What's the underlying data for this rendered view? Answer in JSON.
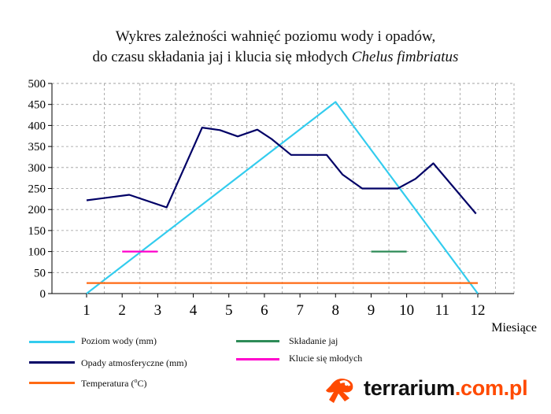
{
  "title": {
    "line1": "Wykres zależności wahnięć poziomu wody i opadów,",
    "line2_prefix": "do czasu składania jaj i klucia się młodych",
    "line2_species": "Chelus fimbriatus"
  },
  "chart_data": {
    "type": "line",
    "xlabel": "Miesiące",
    "ylabel": "",
    "xlim": [
      1,
      12
    ],
    "ylim": [
      0,
      500
    ],
    "x_ticks": [
      1,
      2,
      3,
      4,
      5,
      6,
      7,
      8,
      9,
      10,
      11,
      12
    ],
    "y_ticks": [
      0,
      50,
      100,
      150,
      200,
      250,
      300,
      350,
      400,
      450,
      500
    ],
    "grid": true,
    "series": [
      {
        "name": "Poziom wody (mm)",
        "color": "#33ccee",
        "points": [
          [
            1,
            0
          ],
          [
            8,
            456
          ],
          [
            12,
            0
          ]
        ]
      },
      {
        "name": "Opady atmosferyczne (mm)",
        "color": "#000066",
        "points": [
          [
            1,
            222
          ],
          [
            2.2,
            235
          ],
          [
            3.25,
            205
          ],
          [
            4.25,
            395
          ],
          [
            4.75,
            389
          ],
          [
            5.25,
            374
          ],
          [
            5.8,
            390
          ],
          [
            6.2,
            368
          ],
          [
            6.75,
            330
          ],
          [
            7.75,
            330
          ],
          [
            8.2,
            283
          ],
          [
            8.75,
            250
          ],
          [
            9.75,
            250
          ],
          [
            10.25,
            273
          ],
          [
            10.75,
            310
          ],
          [
            11.95,
            190
          ]
        ]
      },
      {
        "name": "Temperatura (°C)",
        "color": "#ff6a14",
        "points": [
          [
            1,
            25
          ],
          [
            12,
            25
          ]
        ]
      },
      {
        "name": "Składanie jaj",
        "color": "#2e8b57",
        "points": [
          [
            9,
            100
          ],
          [
            10,
            100
          ]
        ]
      },
      {
        "name": "Klucie się młodych",
        "color": "#ff00cc",
        "points": [
          [
            2,
            100
          ],
          [
            3,
            100
          ]
        ]
      }
    ]
  },
  "legend": {
    "water": "Poziom wody",
    "water_unit": "(mm)",
    "rain": "Opady atmosferyczne",
    "rain_unit": "(mm)",
    "temp": "Temperatura",
    "temp_unit_open": "(",
    "temp_unit_deg": "o",
    "temp_unit_close": "C)",
    "eggs": "Składanie jaj",
    "hatch": "Klucie się młodych"
  },
  "logo": {
    "text_main": "terrarium",
    "text_dot": ".com.pl"
  },
  "colors": {
    "water": "#33ccee",
    "rain": "#000066",
    "temp": "#ff6a14",
    "eggs": "#2e8b57",
    "hatch": "#ff00cc",
    "grid": "#9a9a9a",
    "brand": "#ff4a00"
  }
}
